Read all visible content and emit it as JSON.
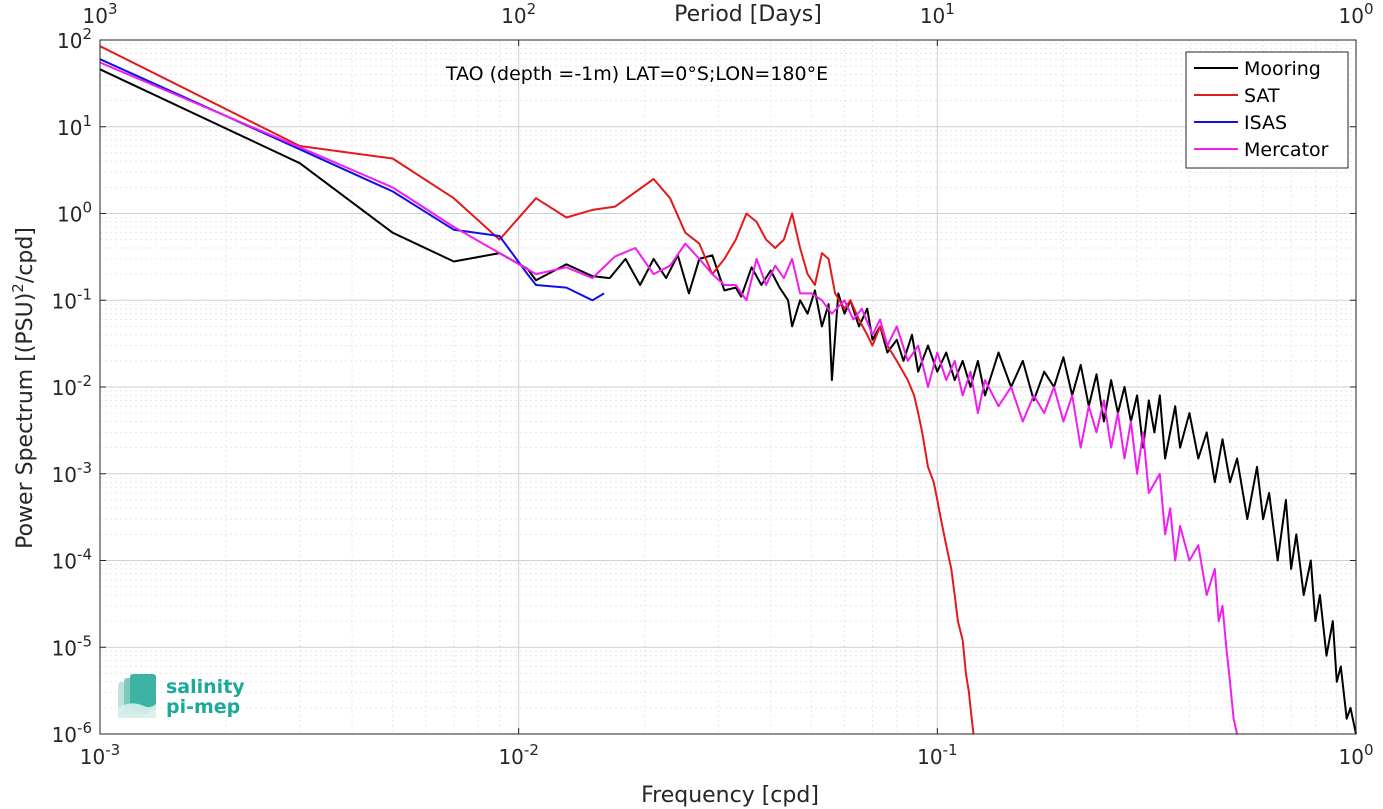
{
  "chart_data": {
    "type": "line",
    "xscale": "log",
    "yscale": "log",
    "xlim": [
      0.001,
      1
    ],
    "ylim": [
      1e-06,
      100
    ],
    "xlabel": "Frequency [cpd]",
    "ylabel": "Power Spectrum [(PSU)²/cpd]",
    "ylabel_parts": {
      "before": "Power Spectrum [(PSU)",
      "sup": "2",
      "after": "/cpd]"
    },
    "top_xlabel": "Period [Days]",
    "annotation": "TAO (depth =-1m) LAT=0°S;LON=180°E",
    "grid": true,
    "legend_position": "top-right",
    "x_ticks": [
      {
        "value": 0.001,
        "base": "10",
        "exp": "-3"
      },
      {
        "value": 0.01,
        "base": "10",
        "exp": "-2"
      },
      {
        "value": 0.1,
        "base": "10",
        "exp": "-1"
      },
      {
        "value": 1,
        "base": "10",
        "exp": "0"
      }
    ],
    "top_x_ticks": [
      {
        "value": 1000,
        "base": "10",
        "exp": "3"
      },
      {
        "value": 100,
        "base": "10",
        "exp": "2"
      },
      {
        "value": 10,
        "base": "10",
        "exp": "1"
      },
      {
        "value": 1,
        "base": "10",
        "exp": "0"
      }
    ],
    "y_ticks": [
      {
        "value": 1e-06,
        "base": "10",
        "exp": "-6"
      },
      {
        "value": 1e-05,
        "base": "10",
        "exp": "-5"
      },
      {
        "value": 0.0001,
        "base": "10",
        "exp": "-4"
      },
      {
        "value": 0.001,
        "base": "10",
        "exp": "-3"
      },
      {
        "value": 0.01,
        "base": "10",
        "exp": "-2"
      },
      {
        "value": 0.1,
        "base": "10",
        "exp": "-1"
      },
      {
        "value": 1,
        "base": "10",
        "exp": "0"
      },
      {
        "value": 10,
        "base": "10",
        "exp": "1"
      },
      {
        "value": 100,
        "base": "10",
        "exp": "2"
      }
    ],
    "series": [
      {
        "name": "Mooring",
        "color": "#000000",
        "points": [
          [
            0.001,
            46
          ],
          [
            0.003,
            3.8
          ],
          [
            0.005,
            0.6
          ],
          [
            0.007,
            0.28
          ],
          [
            0.009,
            0.35
          ],
          [
            0.0105,
            0.23
          ],
          [
            0.011,
            0.17
          ],
          [
            0.013,
            0.26
          ],
          [
            0.015,
            0.19
          ],
          [
            0.0165,
            0.18
          ],
          [
            0.018,
            0.3
          ],
          [
            0.0195,
            0.15
          ],
          [
            0.021,
            0.3
          ],
          [
            0.0225,
            0.18
          ],
          [
            0.024,
            0.33
          ],
          [
            0.0255,
            0.12
          ],
          [
            0.027,
            0.3
          ],
          [
            0.029,
            0.33
          ],
          [
            0.031,
            0.13
          ],
          [
            0.033,
            0.14
          ],
          [
            0.034,
            0.11
          ],
          [
            0.036,
            0.24
          ],
          [
            0.038,
            0.15
          ],
          [
            0.04,
            0.22
          ],
          [
            0.042,
            0.14
          ],
          [
            0.044,
            0.1
          ],
          [
            0.045,
            0.05
          ],
          [
            0.047,
            0.1
          ],
          [
            0.049,
            0.07
          ],
          [
            0.051,
            0.13
          ],
          [
            0.053,
            0.05
          ],
          [
            0.055,
            0.09
          ],
          [
            0.056,
            0.012
          ],
          [
            0.058,
            0.12
          ],
          [
            0.06,
            0.07
          ],
          [
            0.062,
            0.1
          ],
          [
            0.065,
            0.05
          ],
          [
            0.068,
            0.08
          ],
          [
            0.07,
            0.035
          ],
          [
            0.073,
            0.05
          ],
          [
            0.076,
            0.025
          ],
          [
            0.08,
            0.035
          ],
          [
            0.083,
            0.02
          ],
          [
            0.087,
            0.04
          ],
          [
            0.09,
            0.015
          ],
          [
            0.095,
            0.03
          ],
          [
            0.1,
            0.015
          ],
          [
            0.105,
            0.025
          ],
          [
            0.11,
            0.012
          ],
          [
            0.115,
            0.02
          ],
          [
            0.12,
            0.01
          ],
          [
            0.125,
            0.02
          ],
          [
            0.13,
            0.008
          ],
          [
            0.14,
            0.025
          ],
          [
            0.15,
            0.01
          ],
          [
            0.16,
            0.02
          ],
          [
            0.17,
            0.007
          ],
          [
            0.18,
            0.015
          ],
          [
            0.19,
            0.01
          ],
          [
            0.2,
            0.022
          ],
          [
            0.21,
            0.008
          ],
          [
            0.22,
            0.018
          ],
          [
            0.23,
            0.006
          ],
          [
            0.24,
            0.014
          ],
          [
            0.25,
            0.004
          ],
          [
            0.26,
            0.012
          ],
          [
            0.27,
            0.005
          ],
          [
            0.28,
            0.01
          ],
          [
            0.29,
            0.004
          ],
          [
            0.3,
            0.008
          ],
          [
            0.31,
            0.002
          ],
          [
            0.32,
            0.007
          ],
          [
            0.33,
            0.003
          ],
          [
            0.34,
            0.008
          ],
          [
            0.35,
            0.0015
          ],
          [
            0.37,
            0.006
          ],
          [
            0.38,
            0.002
          ],
          [
            0.4,
            0.005
          ],
          [
            0.42,
            0.0015
          ],
          [
            0.44,
            0.003
          ],
          [
            0.46,
            0.0008
          ],
          [
            0.48,
            0.0025
          ],
          [
            0.5,
            0.0008
          ],
          [
            0.52,
            0.0015
          ],
          [
            0.55,
            0.0003
          ],
          [
            0.58,
            0.0012
          ],
          [
            0.6,
            0.0003
          ],
          [
            0.62,
            0.0006
          ],
          [
            0.65,
            0.0001
          ],
          [
            0.68,
            0.0005
          ],
          [
            0.7,
            8e-05
          ],
          [
            0.72,
            0.0002
          ],
          [
            0.75,
            4e-05
          ],
          [
            0.78,
            0.0001
          ],
          [
            0.8,
            2e-05
          ],
          [
            0.82,
            4e-05
          ],
          [
            0.85,
            8e-06
          ],
          [
            0.88,
            2e-05
          ],
          [
            0.9,
            4e-06
          ],
          [
            0.92,
            6e-06
          ],
          [
            0.95,
            1.5e-06
          ],
          [
            0.97,
            2e-06
          ],
          [
            1,
            1e-06
          ]
        ]
      },
      {
        "name": "SAT",
        "color": "#e31a1c",
        "points": [
          [
            0.001,
            85
          ],
          [
            0.003,
            6
          ],
          [
            0.005,
            4.3
          ],
          [
            0.007,
            1.5
          ],
          [
            0.009,
            0.5
          ],
          [
            0.011,
            1.5
          ],
          [
            0.013,
            0.9
          ],
          [
            0.015,
            1.1
          ],
          [
            0.017,
            1.2
          ],
          [
            0.021,
            2.5
          ],
          [
            0.023,
            1.5
          ],
          [
            0.025,
            0.6
          ],
          [
            0.027,
            0.45
          ],
          [
            0.029,
            0.2
          ],
          [
            0.031,
            0.3
          ],
          [
            0.033,
            0.5
          ],
          [
            0.035,
            1.0
          ],
          [
            0.037,
            0.8
          ],
          [
            0.039,
            0.5
          ],
          [
            0.041,
            0.4
          ],
          [
            0.043,
            0.5
          ],
          [
            0.045,
            1.0
          ],
          [
            0.047,
            0.4
          ],
          [
            0.049,
            0.2
          ],
          [
            0.051,
            0.15
          ],
          [
            0.053,
            0.35
          ],
          [
            0.055,
            0.3
          ],
          [
            0.057,
            0.12
          ],
          [
            0.06,
            0.08
          ],
          [
            0.062,
            0.1
          ],
          [
            0.065,
            0.06
          ],
          [
            0.068,
            0.04
          ],
          [
            0.07,
            0.03
          ],
          [
            0.073,
            0.05
          ],
          [
            0.076,
            0.03
          ],
          [
            0.08,
            0.02
          ],
          [
            0.085,
            0.012
          ],
          [
            0.088,
            0.008
          ],
          [
            0.09,
            0.005
          ],
          [
            0.092,
            0.003
          ],
          [
            0.095,
            0.0012
          ],
          [
            0.098,
            0.0008
          ],
          [
            0.1,
            0.0005
          ],
          [
            0.102,
            0.0003
          ],
          [
            0.105,
            0.00015
          ],
          [
            0.108,
            8e-05
          ],
          [
            0.11,
            4e-05
          ],
          [
            0.112,
            2e-05
          ],
          [
            0.115,
            1.2e-05
          ],
          [
            0.117,
            5e-06
          ],
          [
            0.119,
            3e-06
          ],
          [
            0.12,
            2e-06
          ],
          [
            0.122,
            1e-06
          ]
        ]
      },
      {
        "name": "ISAS",
        "color": "#1010e6",
        "points": [
          [
            0.001,
            60
          ],
          [
            0.003,
            5.5
          ],
          [
            0.005,
            1.8
          ],
          [
            0.007,
            0.65
          ],
          [
            0.009,
            0.55
          ],
          [
            0.0105,
            0.2
          ],
          [
            0.011,
            0.15
          ],
          [
            0.013,
            0.14
          ],
          [
            0.015,
            0.1
          ],
          [
            0.016,
            0.12
          ]
        ]
      },
      {
        "name": "Mercator",
        "color": "#f01ef0",
        "points": [
          [
            0.001,
            55
          ],
          [
            0.003,
            5.8
          ],
          [
            0.005,
            2.0
          ],
          [
            0.007,
            0.7
          ],
          [
            0.009,
            0.35
          ],
          [
            0.011,
            0.2
          ],
          [
            0.013,
            0.24
          ],
          [
            0.015,
            0.18
          ],
          [
            0.017,
            0.32
          ],
          [
            0.019,
            0.4
          ],
          [
            0.021,
            0.2
          ],
          [
            0.023,
            0.25
          ],
          [
            0.025,
            0.45
          ],
          [
            0.027,
            0.3
          ],
          [
            0.029,
            0.2
          ],
          [
            0.031,
            0.15
          ],
          [
            0.033,
            0.15
          ],
          [
            0.035,
            0.1
          ],
          [
            0.037,
            0.3
          ],
          [
            0.039,
            0.15
          ],
          [
            0.041,
            0.25
          ],
          [
            0.043,
            0.18
          ],
          [
            0.045,
            0.3
          ],
          [
            0.047,
            0.12
          ],
          [
            0.05,
            0.12
          ],
          [
            0.053,
            0.1
          ],
          [
            0.056,
            0.07
          ],
          [
            0.06,
            0.1
          ],
          [
            0.063,
            0.06
          ],
          [
            0.066,
            0.08
          ],
          [
            0.07,
            0.04
          ],
          [
            0.073,
            0.06
          ],
          [
            0.076,
            0.03
          ],
          [
            0.08,
            0.05
          ],
          [
            0.085,
            0.02
          ],
          [
            0.09,
            0.03
          ],
          [
            0.095,
            0.01
          ],
          [
            0.1,
            0.025
          ],
          [
            0.105,
            0.012
          ],
          [
            0.11,
            0.02
          ],
          [
            0.115,
            0.008
          ],
          [
            0.12,
            0.015
          ],
          [
            0.125,
            0.005
          ],
          [
            0.13,
            0.012
          ],
          [
            0.14,
            0.006
          ],
          [
            0.15,
            0.01
          ],
          [
            0.16,
            0.004
          ],
          [
            0.17,
            0.008
          ],
          [
            0.18,
            0.005
          ],
          [
            0.19,
            0.01
          ],
          [
            0.2,
            0.004
          ],
          [
            0.21,
            0.008
          ],
          [
            0.22,
            0.002
          ],
          [
            0.23,
            0.006
          ],
          [
            0.24,
            0.003
          ],
          [
            0.25,
            0.007
          ],
          [
            0.26,
            0.002
          ],
          [
            0.27,
            0.005
          ],
          [
            0.28,
            0.0015
          ],
          [
            0.29,
            0.004
          ],
          [
            0.3,
            0.001
          ],
          [
            0.31,
            0.003
          ],
          [
            0.32,
            0.0006
          ],
          [
            0.34,
            0.001
          ],
          [
            0.35,
            0.0002
          ],
          [
            0.36,
            0.0004
          ],
          [
            0.37,
            0.0001
          ],
          [
            0.38,
            0.00025
          ],
          [
            0.4,
            0.0001
          ],
          [
            0.42,
            0.00015
          ],
          [
            0.44,
            4e-05
          ],
          [
            0.46,
            8e-05
          ],
          [
            0.47,
            2e-05
          ],
          [
            0.48,
            3e-05
          ],
          [
            0.49,
            1e-05
          ],
          [
            0.5,
            4e-06
          ],
          [
            0.51,
            1.5e-06
          ],
          [
            0.52,
            1e-06
          ]
        ]
      }
    ]
  },
  "logo": {
    "line1": "salinity",
    "line2": "pi-mep",
    "color": "#1aa99a"
  }
}
